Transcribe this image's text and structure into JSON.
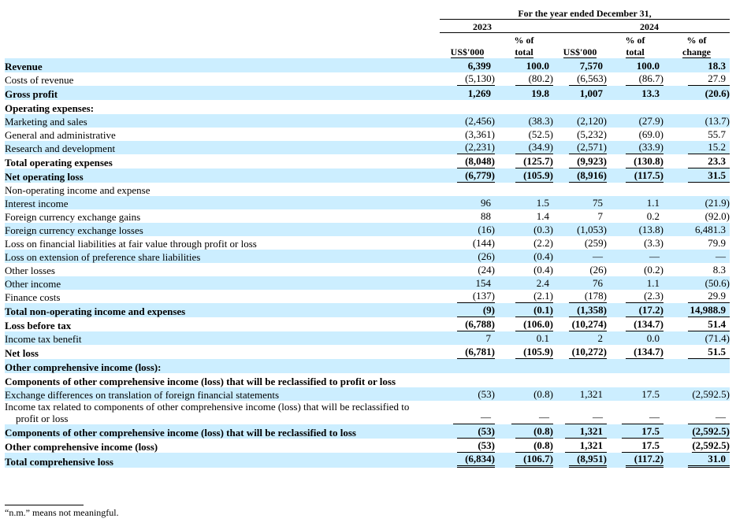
{
  "header": {
    "period": "For the year ended December 31,",
    "year_2023": "2023",
    "year_2024": "2024",
    "col_labels": [
      [
        "",
        "US$'000"
      ],
      [
        "% of",
        "total"
      ],
      [
        "",
        "US$'000"
      ],
      [
        "% of",
        "total"
      ],
      [
        "% of",
        "change"
      ]
    ]
  },
  "shade_color": "#cceeff",
  "rows": [
    {
      "label": "Revenue",
      "values": [
        "6,399",
        "100.0",
        "7,570",
        "100.0",
        "18.3"
      ],
      "bold": true,
      "shade": true
    },
    {
      "label": "Costs of revenue",
      "values": [
        "(5,130)",
        "(80.2)",
        "(6,563)",
        "(86.7)",
        "27.9"
      ],
      "ul": true
    },
    {
      "label": "Gross profit",
      "values": [
        "1,269",
        "19.8",
        "1,007",
        "13.3",
        "(20.6)"
      ],
      "bold": true,
      "shade": true
    },
    {
      "label": "Operating expenses:",
      "values": [
        "",
        "",
        "",
        "",
        ""
      ],
      "bold": true
    },
    {
      "label": "Marketing and sales",
      "values": [
        "(2,456)",
        "(38.3)",
        "(2,120)",
        "(27.9)",
        "(13.7)"
      ],
      "shade": true
    },
    {
      "label": "General and administrative",
      "values": [
        "(3,361)",
        "(52.5)",
        "(5,232)",
        "(69.0)",
        "55.7"
      ]
    },
    {
      "label": "Research and development",
      "values": [
        "(2,231)",
        "(34.9)",
        "(2,571)",
        "(33.9)",
        "15.2"
      ],
      "shade": true,
      "ul": true
    },
    {
      "label": "Total operating expenses",
      "values": [
        "(8,048)",
        "(125.7)",
        "(9,923)",
        "(130.8)",
        "23.3"
      ],
      "bold": true,
      "ul": true
    },
    {
      "label": "Net operating loss",
      "values": [
        "(6,779)",
        "(105.9)",
        "(8,916)",
        "(117.5)",
        "31.5"
      ],
      "bold": true,
      "shade": true,
      "ul": true
    },
    {
      "label": "Non-operating income and expense",
      "values": [
        "",
        "",
        "",
        "",
        ""
      ]
    },
    {
      "label": "Interest income",
      "values": [
        "96",
        "1.5",
        "75",
        "1.1",
        "(21.9)"
      ],
      "shade": true
    },
    {
      "label": "Foreign currency exchange gains",
      "values": [
        "88",
        "1.4",
        "7",
        "0.2",
        "(92.0)"
      ]
    },
    {
      "label": "Foreign currency exchange losses",
      "values": [
        "(16)",
        "(0.3)",
        "(1,053)",
        "(13.8)",
        "6,481.3"
      ],
      "shade": true
    },
    {
      "label": "Loss on financial liabilities at fair value through profit or loss",
      "values": [
        "(144)",
        "(2.2)",
        "(259)",
        "(3.3)",
        "79.9"
      ]
    },
    {
      "label": "Loss on extension of preference share liabilities",
      "values": [
        "(26)",
        "(0.4)",
        "—",
        "—",
        "—"
      ],
      "shade": true
    },
    {
      "label": "Other losses",
      "values": [
        "(24)",
        "(0.4)",
        "(26)",
        "(0.2)",
        "8.3"
      ]
    },
    {
      "label": "Other income",
      "values": [
        "154",
        "2.4",
        "76",
        "1.1",
        "(50.6)"
      ],
      "shade": true
    },
    {
      "label": "Finance costs",
      "values": [
        "(137)",
        "(2.1)",
        "(178)",
        "(2.3)",
        "29.9"
      ],
      "ul": true
    },
    {
      "label": "Total non-operating income and expenses",
      "values": [
        "(9)",
        "(0.1)",
        "(1,358)",
        "(17.2)",
        "14,988.9"
      ],
      "bold": true,
      "shade": true,
      "ul": true
    },
    {
      "label": "Loss before tax",
      "values": [
        "(6,788)",
        "(106.0)",
        "(10,274)",
        "(134.7)",
        "51.4"
      ],
      "bold": true,
      "ul": true
    },
    {
      "label": "Income tax benefit",
      "values": [
        "7",
        "0.1",
        "2",
        "0.0",
        "(71.4)"
      ],
      "shade": true
    },
    {
      "label": "Net loss",
      "values": [
        "(6,781)",
        "(105.9)",
        "(10,272)",
        "(134.7)",
        "51.5"
      ],
      "bold": true,
      "ul": true
    },
    {
      "label": "Other comprehensive income (loss):",
      "values": [
        "",
        "",
        "",
        "",
        ""
      ],
      "bold": true,
      "shade": true
    },
    {
      "label": "Components of other comprehensive income (loss) that will be reclassified to profit or loss",
      "values": [
        "",
        "",
        "",
        "",
        ""
      ],
      "bold": true
    },
    {
      "label": "Exchange differences on translation of foreign financial statements",
      "values": [
        "(53)",
        "(0.8)",
        "1,321",
        "17.5",
        "(2,592.5)"
      ],
      "shade": true
    },
    {
      "label": "Income tax related to components of other comprehensive income (loss) that will be reclassified to profit or loss",
      "values": [
        "—",
        "—",
        "—",
        "—",
        "—"
      ],
      "ul": true,
      "narrow": true
    },
    {
      "label": "Components of other comprehensive income (loss) that will be reclassified to loss",
      "values": [
        "(53)",
        "(0.8)",
        "1,321",
        "17.5",
        "(2,592.5)"
      ],
      "bold": true,
      "shade": true,
      "ul": true
    },
    {
      "label": "Other comprehensive income (loss)",
      "values": [
        "(53)",
        "(0.8)",
        "1,321",
        "17.5",
        "(2,592.5)"
      ],
      "bold": true,
      "ul": true
    },
    {
      "label": "Total comprehensive loss",
      "values": [
        "(6,834)",
        "(106.7)",
        "(8,951)",
        "(117.2)",
        "31.0"
      ],
      "bold": true,
      "shade": true,
      "dbl": true
    }
  ],
  "footnote": "“n.m.” means not meaningful."
}
